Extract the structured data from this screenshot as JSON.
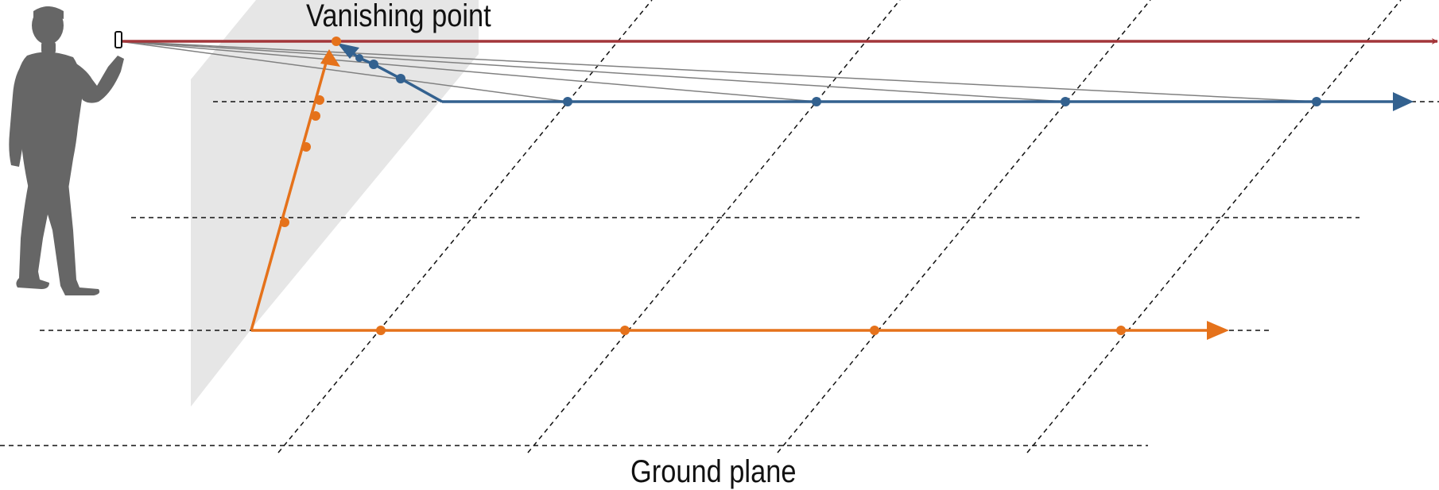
{
  "labels": {
    "vanishing_point": "Vanishing point",
    "ground_plane": "Ground plane"
  },
  "colors": {
    "horizon": "#a3363a",
    "blue_path": "#33618f",
    "orange_path": "#e5721b",
    "sight_lines": "#808080",
    "projection_plane": "#e6e6e6",
    "grid": "#111111",
    "person": "#666666"
  },
  "icons": {
    "person": "person-holding-phone-icon"
  }
}
